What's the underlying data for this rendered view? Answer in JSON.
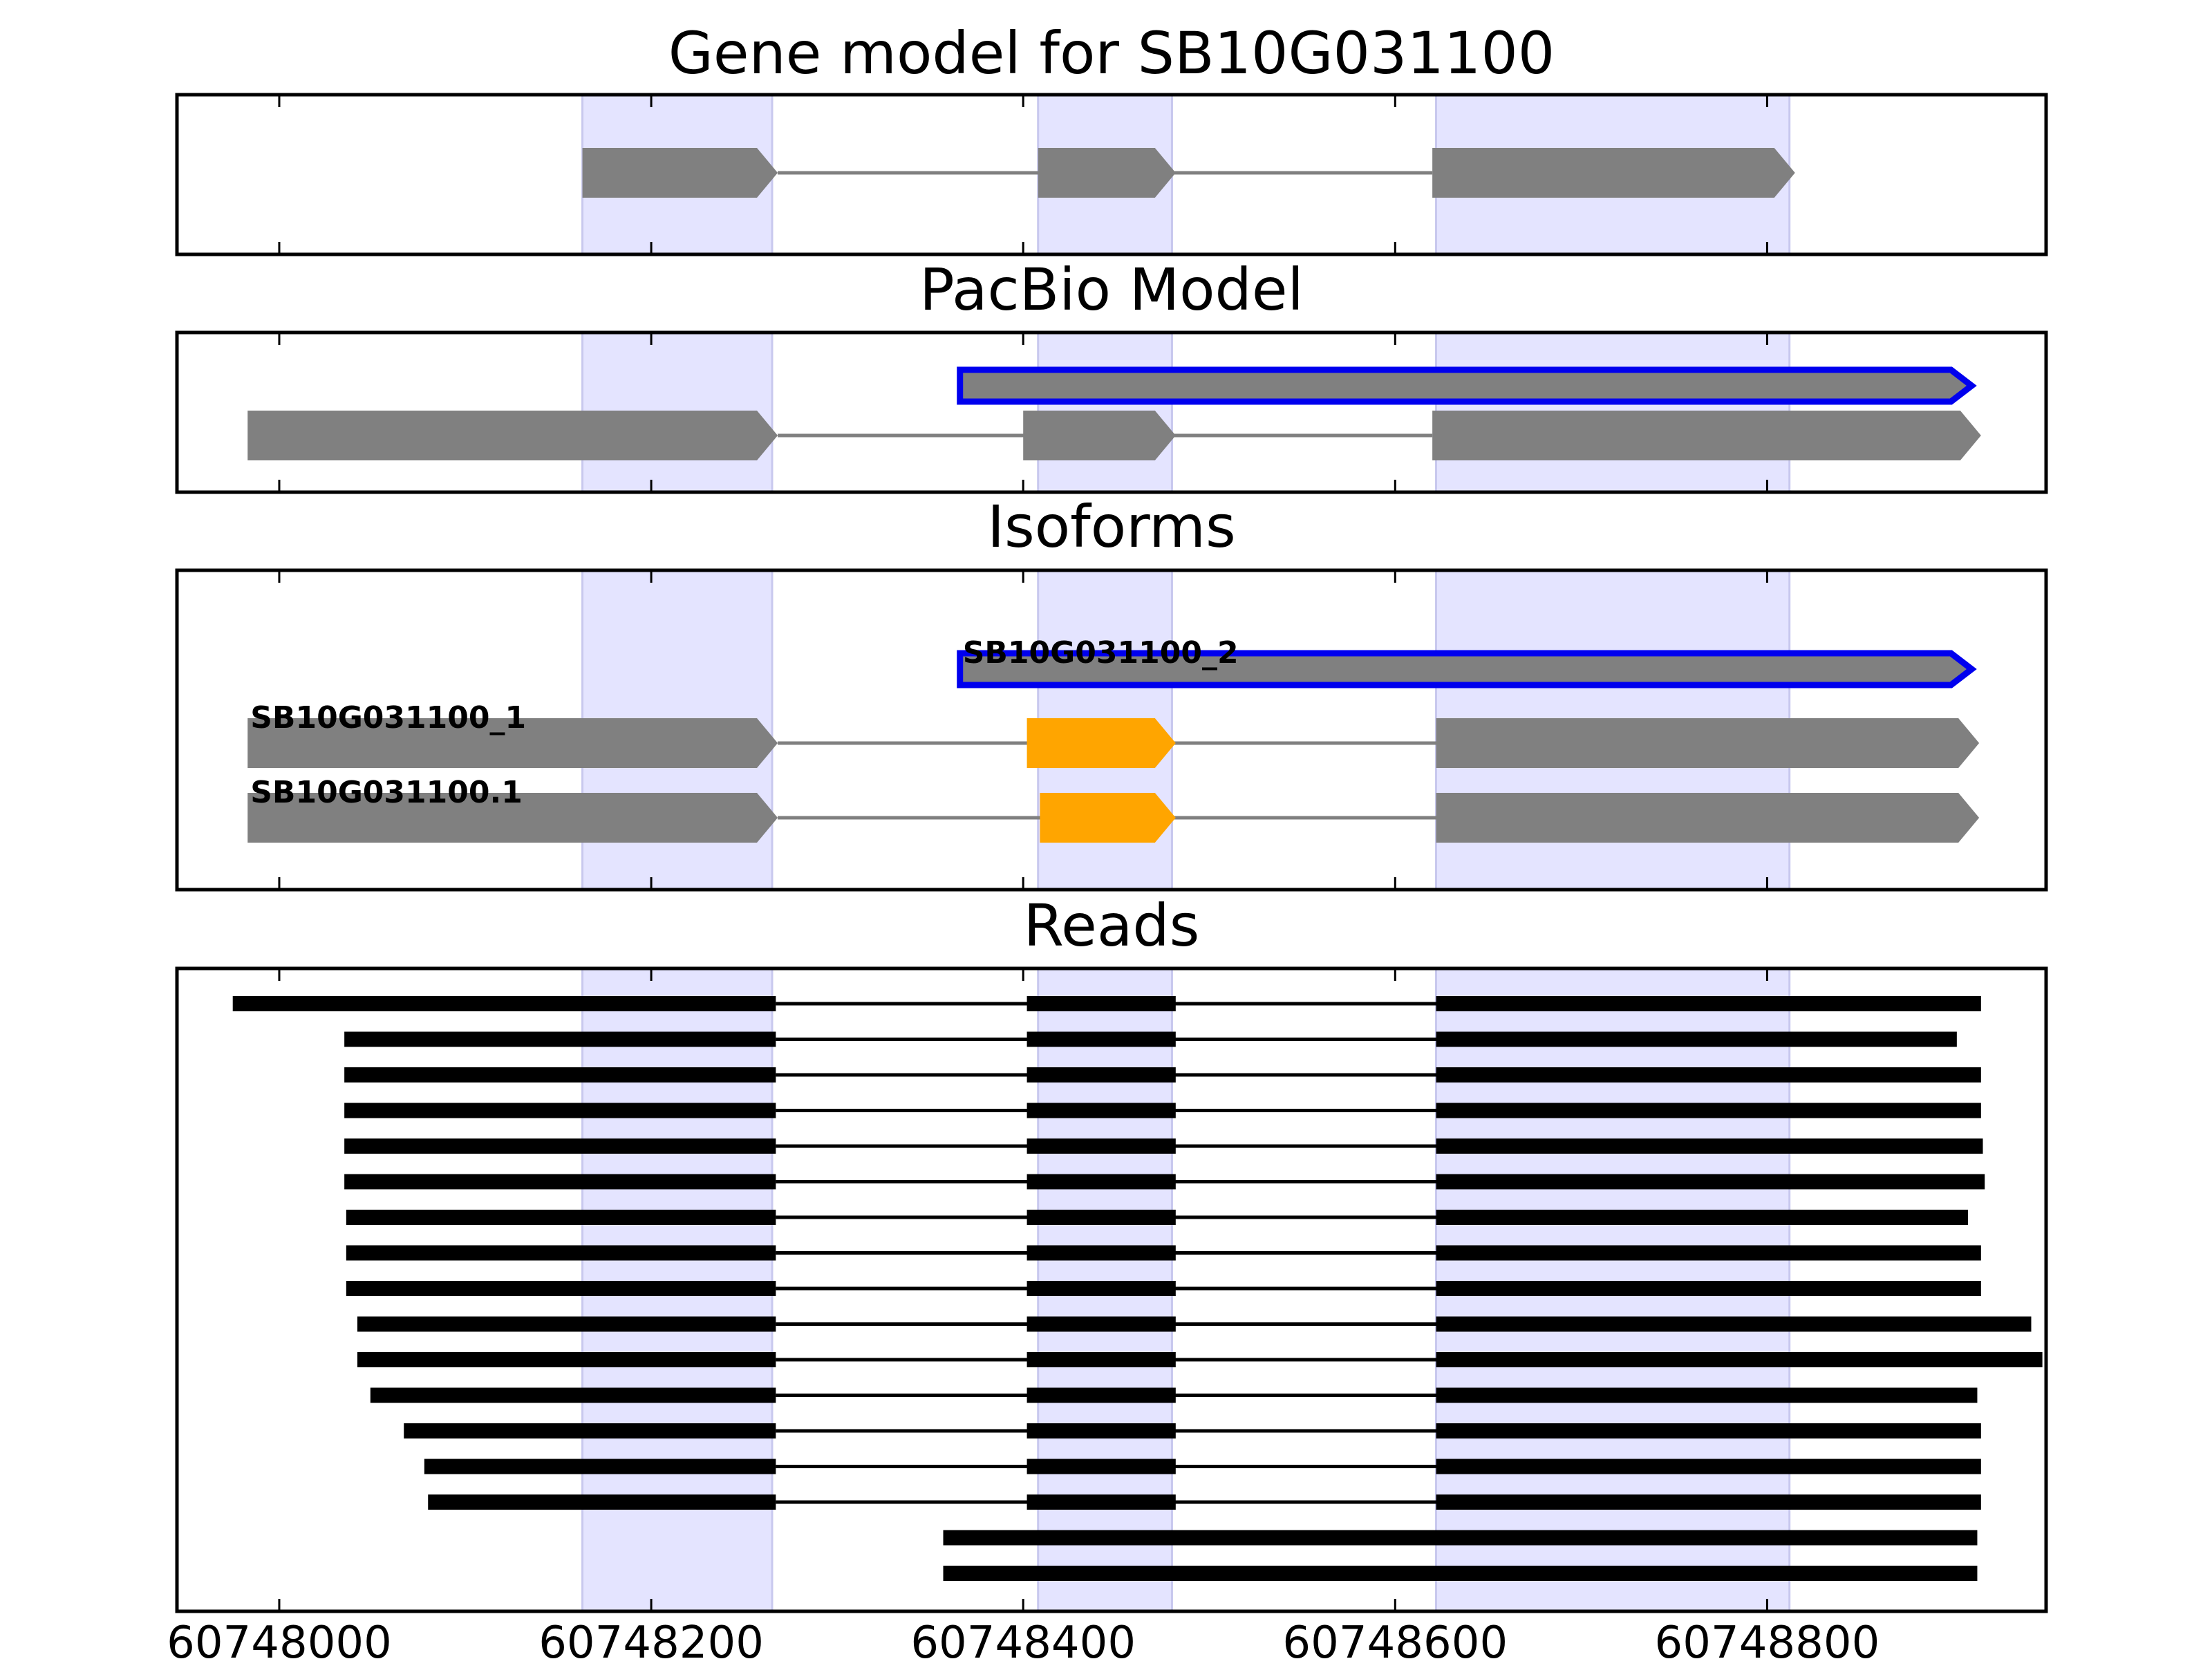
{
  "colors": {
    "exon": "#808080",
    "intron": "#808080",
    "highlight_fill": "#e4e4ff",
    "highlight_edge": "#c8c8ee",
    "selected_outline": "#0000ee",
    "alt_exon": "#ffa500",
    "read": "#000000"
  },
  "x_axis": {
    "min": 60747945,
    "max": 60748950,
    "ticks": [
      60748000,
      60748200,
      60748400,
      60748600,
      60748800
    ],
    "tick_labels": [
      "60748000",
      "60748200",
      "60748400",
      "60748600",
      "60748800"
    ]
  },
  "highlights": [
    [
      60748163,
      60748265
    ],
    [
      60748408,
      60748480
    ],
    [
      60748622,
      60748812
    ]
  ],
  "panels": {
    "gene_model": {
      "title": "Gene model for SB10G031100",
      "tracks": [
        {
          "exons": [
            [
              60748163,
              60748268
            ],
            [
              60748408,
              60748482
            ],
            [
              60748620,
              60748815
            ]
          ],
          "label": ""
        }
      ]
    },
    "pacbio_model": {
      "title": "PacBio Model",
      "tracks": [
        {
          "exons": [
            [
              60748366,
              60748910
            ]
          ],
          "outlined": true,
          "label": ""
        },
        {
          "exons": [
            [
              60747983,
              60748268
            ],
            [
              60748400,
              60748482
            ],
            [
              60748620,
              60748915
            ]
          ],
          "label": ""
        }
      ]
    },
    "isoforms": {
      "title": "Isoforms",
      "tracks": [
        {
          "exons": [
            [
              60748366,
              60748910
            ]
          ],
          "outlined": true,
          "label": "SB10G031100_2"
        },
        {
          "exons": [
            [
              60747983,
              60748268
            ],
            [
              60748402,
              60748482
            ],
            [
              60748622,
              60748914
            ]
          ],
          "alt_exon_index": 1,
          "label": "SB10G031100_1"
        },
        {
          "exons": [
            [
              60747983,
              60748268
            ],
            [
              60748409,
              60748482
            ],
            [
              60748622,
              60748914
            ]
          ],
          "alt_exon_index": 1,
          "label": "SB10G031100.1"
        }
      ]
    },
    "reads": {
      "title": "Reads",
      "tracks": [
        {
          "blocks": [
            [
              60747975,
              60748267
            ],
            [
              60748402,
              60748482
            ],
            [
              60748622,
              60748915
            ]
          ]
        },
        {
          "blocks": [
            [
              60748035,
              60748267
            ],
            [
              60748402,
              60748482
            ],
            [
              60748622,
              60748902
            ]
          ]
        },
        {
          "blocks": [
            [
              60748035,
              60748267
            ],
            [
              60748402,
              60748482
            ],
            [
              60748622,
              60748915
            ]
          ]
        },
        {
          "blocks": [
            [
              60748035,
              60748267
            ],
            [
              60748402,
              60748482
            ],
            [
              60748622,
              60748915
            ]
          ]
        },
        {
          "blocks": [
            [
              60748035,
              60748267
            ],
            [
              60748402,
              60748482
            ],
            [
              60748622,
              60748916
            ]
          ]
        },
        {
          "blocks": [
            [
              60748035,
              60748267
            ],
            [
              60748402,
              60748482
            ],
            [
              60748622,
              60748917
            ]
          ]
        },
        {
          "blocks": [
            [
              60748036,
              60748267
            ],
            [
              60748402,
              60748482
            ],
            [
              60748622,
              60748908
            ]
          ]
        },
        {
          "blocks": [
            [
              60748036,
              60748267
            ],
            [
              60748402,
              60748482
            ],
            [
              60748622,
              60748915
            ]
          ]
        },
        {
          "blocks": [
            [
              60748036,
              60748267
            ],
            [
              60748402,
              60748482
            ],
            [
              60748622,
              60748915
            ]
          ]
        },
        {
          "blocks": [
            [
              60748042,
              60748267
            ],
            [
              60748402,
              60748482
            ],
            [
              60748622,
              60748942
            ]
          ]
        },
        {
          "blocks": [
            [
              60748042,
              60748267
            ],
            [
              60748402,
              60748482
            ],
            [
              60748622,
              60748948
            ]
          ]
        },
        {
          "blocks": [
            [
              60748049,
              60748267
            ],
            [
              60748402,
              60748482
            ],
            [
              60748622,
              60748913
            ]
          ]
        },
        {
          "blocks": [
            [
              60748067,
              60748267
            ],
            [
              60748402,
              60748482
            ],
            [
              60748622,
              60748915
            ]
          ]
        },
        {
          "blocks": [
            [
              60748078,
              60748267
            ],
            [
              60748402,
              60748482
            ],
            [
              60748622,
              60748915
            ]
          ]
        },
        {
          "blocks": [
            [
              60748080,
              60748267
            ],
            [
              60748402,
              60748482
            ],
            [
              60748622,
              60748915
            ]
          ]
        },
        {
          "blocks": [
            [
              60748357,
              60748913
            ]
          ]
        },
        {
          "blocks": [
            [
              60748357,
              60748913
            ]
          ]
        }
      ]
    }
  }
}
